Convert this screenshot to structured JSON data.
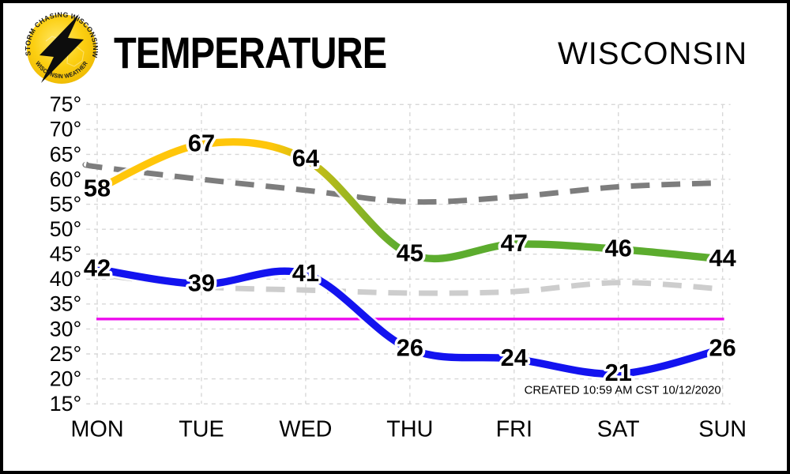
{
  "header": {
    "title": "TEMPERATURE",
    "region": "WISCONSIN"
  },
  "logo": {
    "arc_top_left": "STORM CHASING",
    "arc_top_right": "WISCONSINWX.COM",
    "arc_bottom": "WISCONSIN WEATHER"
  },
  "footer_note": "CREATED 10:59 AM CST 10/12/2020",
  "chart_data": {
    "type": "line",
    "title": "TEMPERATURE",
    "region": "WISCONSIN",
    "categories": [
      "MON",
      "TUE",
      "WED",
      "THU",
      "FRI",
      "SAT",
      "SUN"
    ],
    "series": [
      {
        "name": "average-high",
        "style": "dashed",
        "color": "#7d7d7d",
        "edge_value": 63,
        "values": [
          62.5,
          60,
          57.8,
          55.5,
          56.5,
          58.5,
          59.3
        ]
      },
      {
        "name": "average-low",
        "style": "dashed",
        "color": "#cdcdcd",
        "edge_value": 41.5,
        "values": [
          41,
          38.5,
          37.8,
          37.2,
          37.5,
          39.3,
          38
        ]
      },
      {
        "name": "forecast-low",
        "style": "line",
        "color": "#1313ef",
        "labeled": true,
        "values": [
          42,
          39,
          41,
          26,
          24,
          21,
          26
        ]
      },
      {
        "name": "forecast-high",
        "style": "line",
        "gradient": [
          "#ffc60a",
          "#5cac2e"
        ],
        "labeled": true,
        "values": [
          58,
          67,
          64,
          45,
          47,
          46,
          44
        ]
      }
    ],
    "freezing_line": {
      "value": 32,
      "color": "#ed0ced"
    },
    "yticks": [
      75,
      70,
      65,
      60,
      55,
      50,
      45,
      40,
      35,
      30,
      25,
      20,
      15
    ],
    "ylim": [
      15,
      75
    ],
    "tick_suffix": "°",
    "grid": true,
    "legend": "none"
  }
}
